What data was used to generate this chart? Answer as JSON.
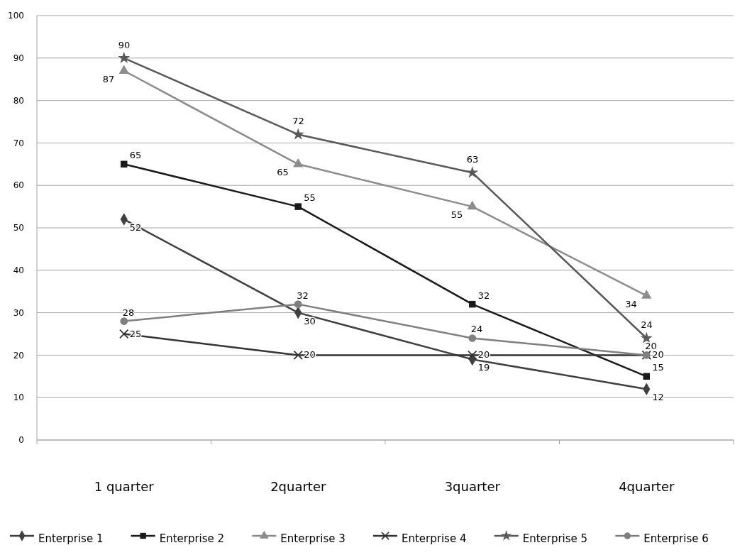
{
  "chart_data": {
    "type": "line",
    "categories": [
      "1 quarter",
      "2quarter",
      "3quarter",
      "4quarter"
    ],
    "ylim": [
      0,
      100
    ],
    "yticks": [
      0,
      10,
      20,
      30,
      40,
      50,
      60,
      70,
      80,
      90,
      100
    ],
    "grid": "y",
    "legend": "bottom",
    "data_labels": true,
    "series": [
      {
        "name": "Enterprise 1",
        "color": "#404040",
        "marker": "diamond",
        "values": [
          52,
          30,
          19,
          12
        ]
      },
      {
        "name": "Enterprise 2",
        "color": "#1a1a1a",
        "marker": "square",
        "values": [
          65,
          55,
          32,
          15
        ]
      },
      {
        "name": "Enterprise 3",
        "color": "#8c8c8c",
        "marker": "triangle",
        "values": [
          87,
          65,
          55,
          34
        ]
      },
      {
        "name": "Enterprise 4",
        "color": "#333333",
        "marker": "cross",
        "values": [
          25,
          20,
          20,
          20
        ]
      },
      {
        "name": "Enterprise 5",
        "color": "#595959",
        "marker": "star",
        "values": [
          90,
          72,
          63,
          24
        ]
      },
      {
        "name": "Enterprise 6",
        "color": "#7f7f7f",
        "marker": "circle",
        "values": [
          28,
          32,
          24,
          20
        ]
      }
    ]
  }
}
